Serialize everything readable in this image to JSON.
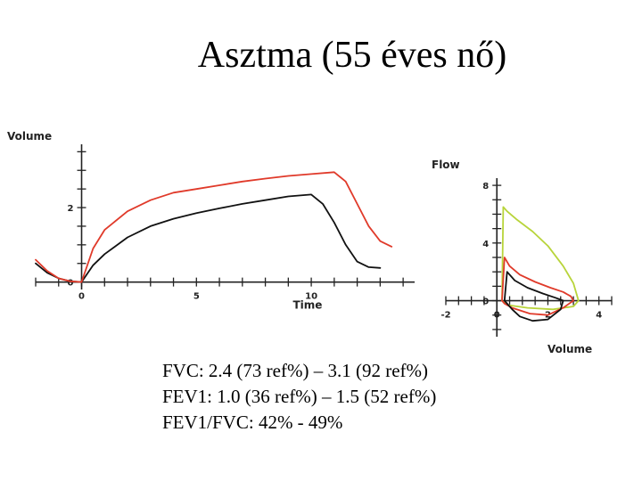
{
  "title": "Asztma (55 éves nő)",
  "results": [
    "FVC: 2.4 (73 ref%) – 3.1 (92 ref%)",
    "FEV1: 1.0 (36 ref%) – 1.5 (52 ref%)",
    "FEV1/FVC: 42% - 49%"
  ],
  "colors": {
    "pre": "#111111",
    "post": "#e03a2a",
    "predicted": "#b8d43a",
    "axis": "#222222"
  },
  "chart_data": [
    {
      "type": "line",
      "xlabel": "Time",
      "ylabel": "Volume",
      "xlim": [
        -2,
        14.5
      ],
      "ylim": [
        -0.2,
        3.7
      ],
      "x_ticks": [
        0,
        5,
        10
      ],
      "y_ticks": [
        0,
        2
      ],
      "series": [
        {
          "color": "#111111",
          "x": [
            -2,
            -1.5,
            -1,
            -0.5,
            0,
            0.5,
            1,
            2,
            3,
            4,
            5,
            6,
            7,
            8,
            9,
            10,
            10.5,
            11,
            11.5,
            12,
            12.5,
            13
          ],
          "y": [
            0.5,
            0.25,
            0.1,
            0.02,
            0,
            0.45,
            0.75,
            1.2,
            1.5,
            1.7,
            1.85,
            1.98,
            2.1,
            2.2,
            2.3,
            2.35,
            2.1,
            1.6,
            1.0,
            0.55,
            0.4,
            0.38
          ]
        },
        {
          "color": "#e03a2a",
          "x": [
            -2,
            -1.5,
            -1,
            -0.5,
            0,
            0.5,
            1,
            2,
            3,
            4,
            5,
            6,
            7,
            8,
            9,
            10,
            11,
            11.5,
            12,
            12.5,
            13,
            13.5
          ],
          "y": [
            0.6,
            0.3,
            0.1,
            0.02,
            0,
            0.9,
            1.4,
            1.9,
            2.2,
            2.4,
            2.5,
            2.6,
            2.7,
            2.78,
            2.85,
            2.9,
            2.95,
            2.7,
            2.1,
            1.5,
            1.1,
            0.95
          ]
        }
      ]
    },
    {
      "type": "line",
      "xlabel": "Volume",
      "ylabel": "Flow",
      "xlim": [
        -2,
        4.5
      ],
      "ylim": [
        -2.5,
        8.5
      ],
      "x_ticks": [
        -2,
        0,
        2,
        4
      ],
      "y_ticks": [
        0,
        4,
        8
      ],
      "series": [
        {
          "color": "#b8d43a",
          "x": [
            0.2,
            0.25,
            0.4,
            0.8,
            1.4,
            2.0,
            2.6,
            3.0,
            3.2,
            3.0,
            2.2,
            1.2,
            0.4,
            0.2
          ],
          "y": [
            0,
            6.5,
            6.2,
            5.6,
            4.8,
            3.8,
            2.4,
            1.2,
            0,
            -0.4,
            -0.6,
            -0.5,
            -0.3,
            0
          ]
        },
        {
          "color": "#e03a2a",
          "x": [
            0.2,
            0.3,
            0.5,
            0.9,
            1.5,
            2.1,
            2.6,
            2.9,
            3.0,
            2.6,
            2.0,
            1.3,
            0.6,
            0.3,
            0.2
          ],
          "y": [
            0,
            3.0,
            2.4,
            1.8,
            1.3,
            0.9,
            0.6,
            0.3,
            0,
            -0.5,
            -1.0,
            -0.9,
            -0.5,
            -0.2,
            0
          ]
        },
        {
          "color": "#111111",
          "x": [
            0.3,
            0.4,
            0.7,
            1.2,
            1.8,
            2.3,
            2.6,
            2.5,
            2.0,
            1.4,
            0.9,
            0.6,
            0.3
          ],
          "y": [
            0,
            2.0,
            1.4,
            0.9,
            0.5,
            0.2,
            0,
            -0.6,
            -1.3,
            -1.4,
            -1.1,
            -0.6,
            0
          ]
        }
      ]
    }
  ]
}
